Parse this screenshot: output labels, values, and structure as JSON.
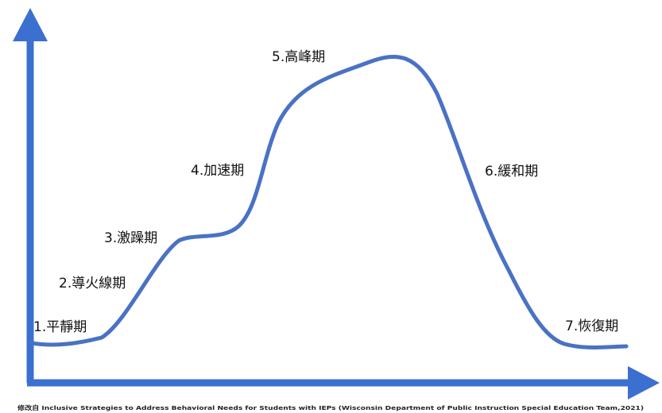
{
  "colors": {
    "axis": "#3b6fd0",
    "curve": "#4a72c4",
    "text": "#111111"
  },
  "stages": [
    {
      "label": "1.平靜期"
    },
    {
      "label": "2.導火線期"
    },
    {
      "label": "3.激躁期"
    },
    {
      "label": "4.加速期"
    },
    {
      "label": "5.高峰期"
    },
    {
      "label": "6.緩和期"
    },
    {
      "label": "7.恢復期"
    }
  ],
  "caption": "修改自 Inclusive Strategies to Address Behavioral Needs for Students with IEPs (Wisconsin Department of Public Instruction Special Education Team,2021)"
}
